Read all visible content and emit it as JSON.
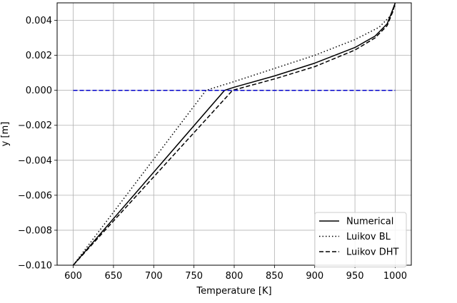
{
  "chart_data": {
    "type": "line",
    "xlabel": "Temperature [K]",
    "ylabel": "y [m]",
    "xlim": [
      580,
      1020
    ],
    "ylim": [
      -0.01,
      0.005
    ],
    "xticks": [
      600,
      650,
      700,
      750,
      800,
      850,
      900,
      950,
      1000
    ],
    "yticks": [
      -0.01,
      -0.008,
      -0.006,
      -0.004,
      -0.002,
      0.0,
      0.002,
      0.004
    ],
    "xtick_labels": [
      "600",
      "650",
      "700",
      "750",
      "800",
      "850",
      "900",
      "950",
      "1000"
    ],
    "ytick_labels": [
      "−0.010",
      "−0.008",
      "−0.006",
      "−0.004",
      "−0.002",
      "0.000",
      "0.002",
      "0.004"
    ],
    "grid": true,
    "legend_position": "lower-right",
    "series": [
      {
        "name": "Numerical",
        "color": "#000000",
        "style": "solid",
        "points": [
          [
            600,
            -0.01
          ],
          [
            788,
            0.0
          ],
          [
            800,
            0.00018
          ],
          [
            850,
            0.00082
          ],
          [
            900,
            0.00155
          ],
          [
            950,
            0.00245
          ],
          [
            975,
            0.0031
          ],
          [
            990,
            0.0038
          ],
          [
            996,
            0.0045
          ],
          [
            1000,
            0.005
          ]
        ]
      },
      {
        "name": "Luikov BL",
        "color": "#000000",
        "style": "dotted",
        "points": [
          [
            600,
            -0.01
          ],
          [
            765,
            0.0
          ],
          [
            800,
            0.0005
          ],
          [
            850,
            0.00125
          ],
          [
            900,
            0.002
          ],
          [
            950,
            0.0029
          ],
          [
            980,
            0.0036
          ],
          [
            995,
            0.0043
          ],
          [
            1000,
            0.0049
          ]
        ]
      },
      {
        "name": "Luikov DHT",
        "color": "#000000",
        "style": "dashed",
        "points": [
          [
            600,
            -0.01
          ],
          [
            798,
            0.0
          ],
          [
            850,
            0.00065
          ],
          [
            900,
            0.00135
          ],
          [
            950,
            0.0023
          ],
          [
            975,
            0.003
          ],
          [
            990,
            0.0037
          ],
          [
            997,
            0.0045
          ],
          [
            1000,
            0.005
          ]
        ]
      },
      {
        "name": "",
        "color": "#0000cc",
        "style": "dashed",
        "points": [
          [
            600,
            0.0
          ],
          [
            1000,
            0.0
          ]
        ]
      }
    ]
  }
}
